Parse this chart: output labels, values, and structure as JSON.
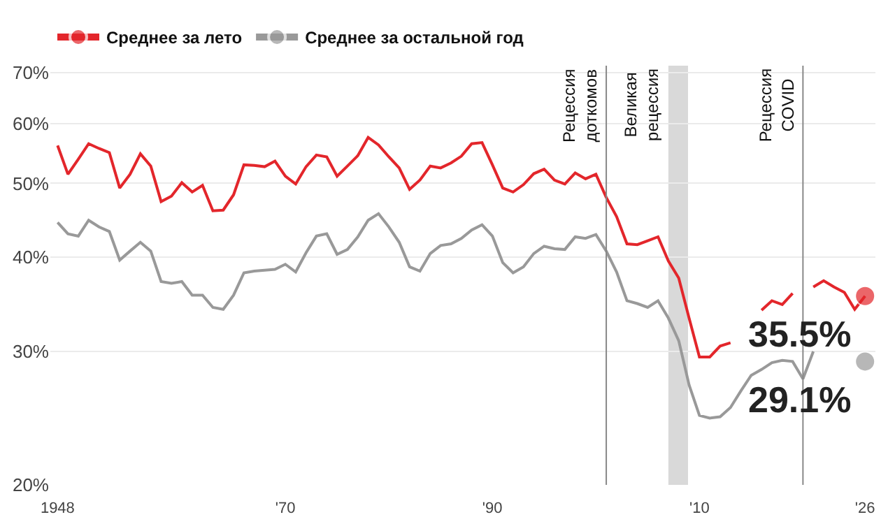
{
  "chart_data": {
    "type": "line",
    "x": [
      1948,
      1949,
      1950,
      1951,
      1952,
      1953,
      1954,
      1955,
      1956,
      1957,
      1958,
      1959,
      1960,
      1961,
      1962,
      1963,
      1964,
      1965,
      1966,
      1967,
      1968,
      1969,
      1970,
      1971,
      1972,
      1973,
      1974,
      1975,
      1976,
      1977,
      1978,
      1979,
      1980,
      1981,
      1982,
      1983,
      1984,
      1985,
      1986,
      1987,
      1988,
      1989,
      1990,
      1991,
      1992,
      1993,
      1994,
      1995,
      1996,
      1997,
      1998,
      1999,
      2000,
      2001,
      2002,
      2003,
      2004,
      2005,
      2006,
      2007,
      2008,
      2009,
      2010,
      2011,
      2012,
      2013,
      2014,
      2015,
      2016,
      2017,
      2018,
      2019,
      2020,
      2021,
      2022,
      2023,
      2024,
      2025,
      2026
    ],
    "series": [
      {
        "name": "Среднее за лето",
        "color": "#e3262b",
        "values": [
          56.1,
          51.4,
          53.8,
          56.4,
          55.6,
          54.9,
          49.3,
          51.4,
          54.7,
          52.7,
          47.3,
          48.1,
          50.1,
          48.7,
          49.7,
          46.0,
          46.1,
          48.3,
          52.9,
          52.8,
          52.6,
          53.5,
          51.1,
          49.9,
          52.6,
          54.5,
          54.2,
          51.1,
          52.7,
          54.4,
          57.5,
          56.2,
          54.2,
          52.4,
          49.1,
          50.5,
          52.7,
          52.4,
          53.2,
          54.3,
          56.4,
          56.6,
          52.9,
          49.3,
          48.7,
          49.8,
          51.5,
          52.2,
          50.5,
          49.9,
          51.6,
          50.7,
          51.4,
          47.9,
          45.2,
          41.6,
          41.5,
          42.0,
          42.5,
          39.5,
          37.5,
          33.2,
          29.5,
          29.5,
          30.5,
          30.8,
          null,
          null,
          34.0,
          35.0,
          34.6,
          35.8,
          null,
          36.5,
          37.2,
          36.5,
          35.9,
          34.1,
          35.5
        ],
        "value_labels": [
          null,
          null,
          null,
          null,
          null,
          null,
          null,
          null,
          null,
          null,
          null,
          null,
          null,
          null,
          null,
          null,
          null,
          null,
          null,
          null,
          null,
          null,
          null,
          null,
          null,
          null,
          null,
          null,
          null,
          null,
          null,
          null,
          null,
          null,
          null,
          null,
          null,
          null,
          null,
          null,
          null,
          null,
          null,
          null,
          null,
          null,
          null,
          null,
          null,
          null,
          null,
          null,
          null,
          null,
          null,
          null,
          null,
          null,
          null,
          null,
          null,
          null,
          null,
          null,
          null,
          null,
          null,
          null,
          null,
          null,
          null,
          null,
          null,
          null,
          null,
          null,
          null,
          null,
          "35.5%"
        ]
      },
      {
        "name": "Среднее за остальной год",
        "color": "#999999",
        "values": [
          44.4,
          42.9,
          42.6,
          44.7,
          43.8,
          43.2,
          39.6,
          40.7,
          41.8,
          40.7,
          37.1,
          36.9,
          37.1,
          35.6,
          35.6,
          34.3,
          34.1,
          35.6,
          38.1,
          38.3,
          38.4,
          38.5,
          39.1,
          38.2,
          40.5,
          42.6,
          42.9,
          40.3,
          40.9,
          42.5,
          44.7,
          45.6,
          43.8,
          41.8,
          38.8,
          38.3,
          40.4,
          41.4,
          41.6,
          42.3,
          43.4,
          44.1,
          42.6,
          39.3,
          38.1,
          38.8,
          40.4,
          41.3,
          41.0,
          40.9,
          42.5,
          42.3,
          42.8,
          40.7,
          38.2,
          35.0,
          34.7,
          34.3,
          35.0,
          33.2,
          31.0,
          27.1,
          24.7,
          24.5,
          24.6,
          25.3,
          26.6,
          27.9,
          28.4,
          29.0,
          29.2,
          29.1,
          27.6,
          30.0,
          null,
          null,
          null,
          null,
          29.1
        ],
        "value_labels": [
          null,
          null,
          null,
          null,
          null,
          null,
          null,
          null,
          null,
          null,
          null,
          null,
          null,
          null,
          null,
          null,
          null,
          null,
          null,
          null,
          null,
          null,
          null,
          null,
          null,
          null,
          null,
          null,
          null,
          null,
          null,
          null,
          null,
          null,
          null,
          null,
          null,
          null,
          null,
          null,
          null,
          null,
          null,
          null,
          null,
          null,
          null,
          null,
          null,
          null,
          null,
          null,
          null,
          null,
          null,
          null,
          null,
          null,
          null,
          null,
          null,
          null,
          null,
          null,
          null,
          null,
          null,
          null,
          null,
          null,
          null,
          null,
          null,
          null,
          null,
          null,
          null,
          null,
          "29.1%"
        ]
      }
    ],
    "log": "y",
    "grid": "y",
    "legend": "top left",
    "xlim": [
      1947.3,
      2027
    ],
    "xticks": [
      1948,
      {
        "value": 1970,
        "label": "'70"
      },
      {
        "value": 1990,
        "label": "'90"
      },
      {
        "value": 2010,
        "label": "'10"
      },
      {
        "value": 2026,
        "label": "'26"
      }
    ],
    "ylim": [
      20,
      71.5
    ],
    "yticks": [
      {
        "value": 20,
        "label": "20%"
      },
      {
        "value": 30,
        "label": "30%"
      },
      {
        "value": 40,
        "label": "40%"
      },
      {
        "value": 50,
        "label": "50%"
      },
      {
        "value": 60,
        "label": "60%"
      },
      {
        "value": 70,
        "label": "70%"
      }
    ],
    "ref_lines": [
      {
        "axis": "x",
        "value": 2001,
        "label": "Рецессия\nдоткомов",
        "color": "#888888"
      },
      {
        "axis": "x",
        "value": 2020,
        "label": "Рецессия\nCOVID",
        "color": "#888888"
      }
    ],
    "bands": [
      {
        "axis": "x",
        "from": 2007,
        "to": 2008.9,
        "label": "Великая\nрецессия",
        "color": "#d9d9d9"
      }
    ]
  }
}
